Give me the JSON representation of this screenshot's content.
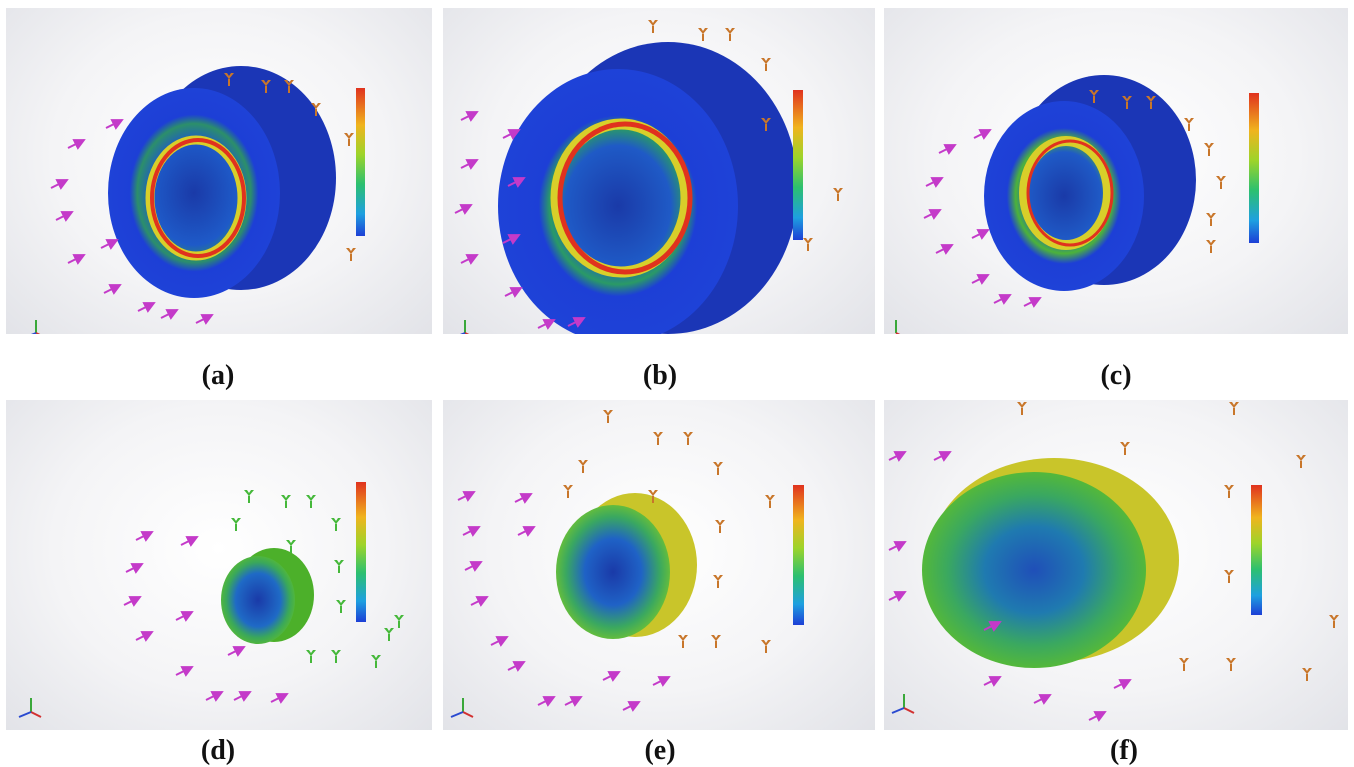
{
  "figure": {
    "panels": [
      {
        "id": "a",
        "caption": "(a)",
        "part": "thick-disc",
        "stress_state": "blue disc with red/yellow ring near center"
      },
      {
        "id": "b",
        "caption": "(b)",
        "part": "large-thick-disc",
        "stress_state": "blue disc with red/yellow ring near center"
      },
      {
        "id": "c",
        "caption": "(c)",
        "part": "thick-disc-small",
        "stress_state": "blue disc with yellow/red ring near center"
      },
      {
        "id": "d",
        "caption": "(d)",
        "part": "thin-disc-small",
        "stress_state": "green rim, blue center"
      },
      {
        "id": "e",
        "caption": "(e)",
        "part": "thin-disc-medium",
        "stress_state": "yellow/green rim, blue center"
      },
      {
        "id": "f",
        "caption": "(f)",
        "part": "thin-disc-large",
        "stress_state": "yellow/green rim, blue-green center"
      }
    ],
    "colors": {
      "disc_blue": "#1d3fd6",
      "disc_green": "#5fbf2a",
      "disc_yellow": "#d8cf2a",
      "stress_red": "#e0321e",
      "load_arrow": "#c43ac9",
      "fixture_orange": "#c8762a",
      "fixture_green": "#45b83a"
    },
    "icons": [
      "load-arrow-icon",
      "fixture-icon",
      "axis-triad-icon",
      "color-legend-bar"
    ]
  }
}
